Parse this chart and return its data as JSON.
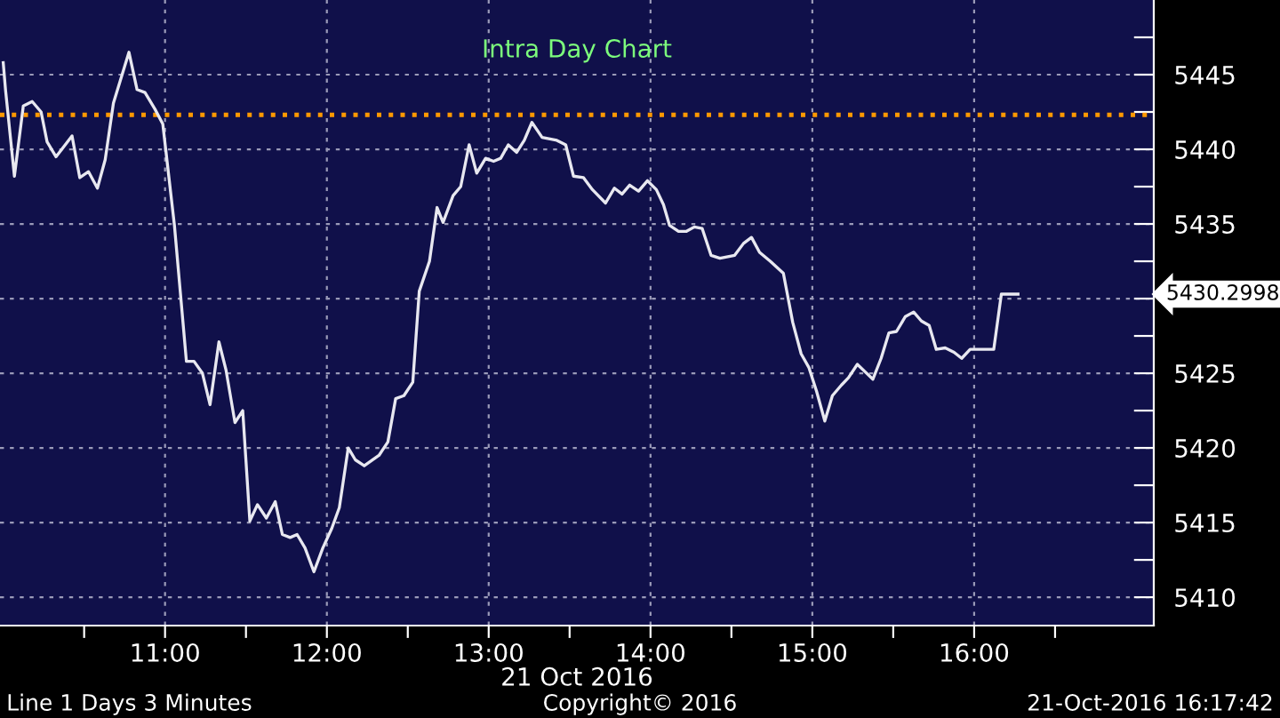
{
  "chart_data": {
    "type": "line",
    "title": "Intra Day Chart",
    "xlabel": "21 Oct 2016",
    "x": [
      10.0,
      10.014,
      10.069,
      10.124,
      10.179,
      10.234,
      10.271,
      10.326,
      10.425,
      10.473,
      10.527,
      10.582,
      10.63,
      10.681,
      10.777,
      10.827,
      10.876,
      10.937,
      10.986,
      11.058,
      11.132,
      11.179,
      11.231,
      11.278,
      11.333,
      11.377,
      11.432,
      11.48,
      11.524,
      11.571,
      11.626,
      11.681,
      11.725,
      11.773,
      11.816,
      11.865,
      11.92,
      11.975,
      12.03,
      12.077,
      12.132,
      12.176,
      12.231,
      12.322,
      12.377,
      12.425,
      12.476,
      12.531,
      12.571,
      12.634,
      12.681,
      12.718,
      12.78,
      12.827,
      12.879,
      12.926,
      12.981,
      13.03,
      13.074,
      13.121,
      13.173,
      13.22,
      13.267,
      13.33,
      13.421,
      13.476,
      13.524,
      13.586,
      13.641,
      13.722,
      13.777,
      13.824,
      13.871,
      13.926,
      13.981,
      14.036,
      14.08,
      14.118,
      14.173,
      14.22,
      14.271,
      14.319,
      14.374,
      14.429,
      14.52,
      14.575,
      14.624,
      14.674,
      14.74,
      14.821,
      14.879,
      14.931,
      14.978,
      15.026,
      15.077,
      15.124,
      15.179,
      15.223,
      15.278,
      15.326,
      15.374,
      15.425,
      15.473,
      15.52,
      15.575,
      15.626,
      15.674,
      15.722,
      15.766,
      15.821,
      15.876,
      15.923,
      15.975,
      16.121,
      16.168,
      16.271
    ],
    "series": [
      {
        "color": "#e8e8f0",
        "values": [
          5445.8,
          5444.0,
          5438.2,
          5442.9,
          5443.2,
          5442.5,
          5440.5,
          5439.5,
          5440.9,
          5438.1,
          5438.5,
          5437.4,
          5439.3,
          5443.1,
          5446.5,
          5444.0,
          5443.8,
          5442.7,
          5441.7,
          5434.9,
          5425.8,
          5425.8,
          5425.0,
          5422.9,
          5427.1,
          5425.2,
          5421.7,
          5422.5,
          5415.1,
          5416.2,
          5415.3,
          5416.4,
          5414.2,
          5414.0,
          5414.2,
          5413.3,
          5411.7,
          5413.3,
          5414.6,
          5416.0,
          5420.0,
          5419.2,
          5418.8,
          5419.5,
          5420.4,
          5423.3,
          5423.5,
          5424.4,
          5430.5,
          5432.5,
          5436.1,
          5435.1,
          5436.9,
          5437.5,
          5440.3,
          5438.4,
          5439.4,
          5439.2,
          5439.4,
          5440.3,
          5439.8,
          5440.6,
          5441.8,
          5440.8,
          5440.6,
          5440.3,
          5438.2,
          5438.1,
          5437.3,
          5436.4,
          5437.4,
          5437.0,
          5437.6,
          5437.2,
          5437.9,
          5437.3,
          5436.3,
          5434.9,
          5434.5,
          5434.5,
          5434.8,
          5434.7,
          5432.9,
          5432.7,
          5432.9,
          5433.7,
          5434.1,
          5433.1,
          5432.5,
          5431.7,
          5428.4,
          5426.3,
          5425.4,
          5423.8,
          5421.8,
          5423.5,
          5424.2,
          5424.7,
          5425.6,
          5425.1,
          5424.6,
          5426.0,
          5427.7,
          5427.8,
          5428.8,
          5429.1,
          5428.5,
          5428.2,
          5426.6,
          5426.7,
          5426.4,
          5426.0,
          5426.6,
          5426.6,
          5430.2998,
          5430.2998
        ]
      }
    ],
    "xlim": [
      9.98,
      17.11
    ],
    "ylim": [
      5408.1,
      5450
    ],
    "xticks": [
      {
        "value": 10.5,
        "label": null
      },
      {
        "value": 11,
        "label": "11:00"
      },
      {
        "value": 11.5,
        "label": null
      },
      {
        "value": 12,
        "label": "12:00"
      },
      {
        "value": 12.5,
        "label": null
      },
      {
        "value": 13,
        "label": "13:00"
      },
      {
        "value": 13.5,
        "label": null
      },
      {
        "value": 14,
        "label": "14:00"
      },
      {
        "value": 14.5,
        "label": null
      },
      {
        "value": 15,
        "label": "15:00"
      },
      {
        "value": 15.5,
        "label": null
      },
      {
        "value": 16,
        "label": "16:00"
      },
      {
        "value": 16.5,
        "label": null
      }
    ],
    "yticks": [
      5410,
      {
        "value": 5412.5,
        "label": null
      },
      5415,
      {
        "value": 5417.5,
        "label": null
      },
      5420,
      {
        "value": 5422.5,
        "label": null
      },
      5425,
      {
        "value": 5427.5,
        "label": null
      },
      {
        "value": 5430,
        "label": null
      },
      {
        "value": 5432.5,
        "label": null
      },
      5435,
      {
        "value": 5437.5,
        "label": null
      },
      5440,
      {
        "value": 5442.5,
        "label": null
      },
      5445,
      {
        "value": 5447.5,
        "label": null
      }
    ],
    "grid": true,
    "marker": "none",
    "line_style": "solid",
    "ref_lines": [
      {
        "axis": "y",
        "value": 5442.3,
        "color": "#ff9900",
        "line_style": "dotted"
      }
    ],
    "annotations": [
      "5430.2998",
      "Line 1 Days 3 Minutes",
      "Copyright© 2016",
      "21-Oct-2016 16:17:42"
    ]
  }
}
